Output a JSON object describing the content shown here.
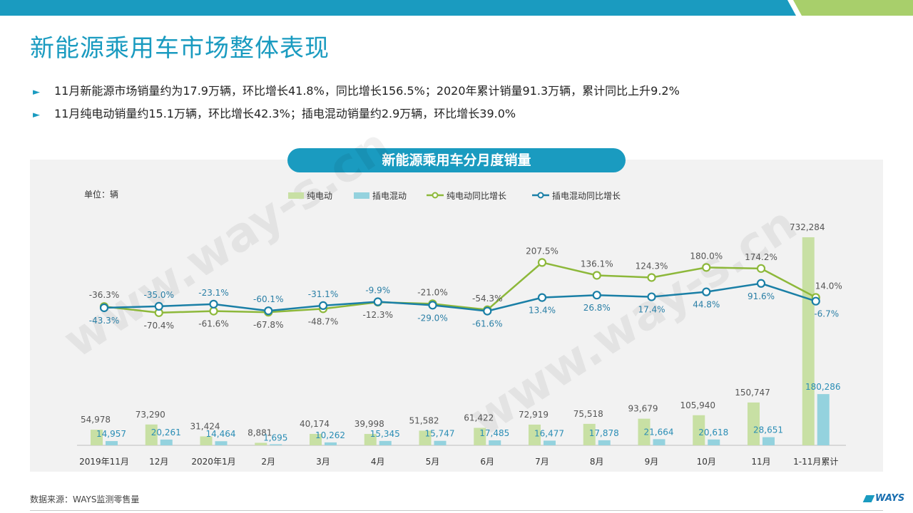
{
  "page": {
    "title": "新能源乘用车市场整体表现",
    "bullets": [
      "11月新能源市场销量约为17.9万辆，环比增长41.8%，同比增长156.5%；2020年累计销量91.3万辆，累计同比上升9.2%",
      "11月纯电动销量约15.1万辆，环比增长42.3%；插电混动销量约2.9万辆，环比增长39.0%"
    ],
    "bullet_marker": "►",
    "source": "数据来源：WAYS监测零售量",
    "logo": "WAYS",
    "watermark": "www.way-s.cn"
  },
  "colors": {
    "accent": "#1a9bc0",
    "bar_bev": "#c8e0a4",
    "bar_phev": "#94d2de",
    "line_bev": "#8db83a",
    "line_phev": "#1a7fa6",
    "topbar_right": "#a8cf6b"
  },
  "chart_data": {
    "type": "bar",
    "title": "新能源乘用车分月度销量",
    "unit_label": "单位：辆",
    "legend_position": "top",
    "grid": false,
    "categories": [
      "2019年11月",
      "12月",
      "2020年1月",
      "2月",
      "3月",
      "4月",
      "5月",
      "6月",
      "7月",
      "8月",
      "9月",
      "10月",
      "11月",
      "1-11月累计"
    ],
    "series": [
      {
        "name": "纯电动",
        "kind": "bar",
        "values": [
          54978,
          73290,
          31424,
          8881,
          40174,
          39998,
          51582,
          61422,
          72919,
          75518,
          93679,
          105940,
          150747,
          732284
        ],
        "labels": [
          "54,978",
          "73,290",
          "31,424",
          "8,881",
          "40,174",
          "39,998",
          "51,582",
          "61,422",
          "72,919",
          "75,518",
          "93,679",
          "105,940",
          "150,747",
          "732,284"
        ]
      },
      {
        "name": "插电混动",
        "kind": "bar",
        "values": [
          14957,
          20261,
          14464,
          1695,
          10262,
          15345,
          15747,
          17485,
          16477,
          17878,
          21664,
          20618,
          28651,
          180286
        ],
        "labels": [
          "14,957",
          "20,261",
          "14,464",
          "1,695",
          "10,262",
          "15,345",
          "15,747",
          "17,485",
          "16,477",
          "17,878",
          "21,664",
          "20,618",
          "28,651",
          "180,286"
        ]
      },
      {
        "name": "纯电动同比增长",
        "kind": "line",
        "values": [
          -36.3,
          -70.4,
          -61.6,
          -67.8,
          -48.7,
          -12.3,
          -21.0,
          -54.3,
          207.5,
          136.1,
          124.3,
          180.0,
          174.2,
          14.0
        ],
        "labels": [
          "-36.3%",
          "-70.4%",
          "-61.6%",
          "-67.8%",
          "-48.7%",
          "-12.3%",
          "-21.0%",
          "-54.3%",
          "207.5%",
          "136.1%",
          "124.3%",
          "180.0%",
          "174.2%",
          "14.0%"
        ]
      },
      {
        "name": "插电混动同比增长",
        "kind": "line",
        "values": [
          -43.3,
          -35.0,
          -23.1,
          -60.1,
          -31.1,
          -9.9,
          -29.0,
          -61.6,
          13.4,
          26.8,
          17.4,
          44.8,
          91.6,
          -6.7
        ],
        "labels": [
          "-43.3%",
          "-35.0%",
          "-23.1%",
          "-60.1%",
          "-31.1%",
          "-9.9%",
          "-29.0%",
          "-61.6%",
          "13.4%",
          "26.8%",
          "17.4%",
          "44.8%",
          "91.6%",
          "-6.7%"
        ]
      }
    ]
  }
}
